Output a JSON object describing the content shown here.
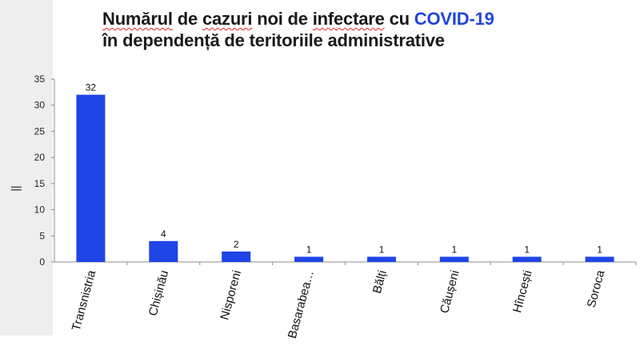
{
  "title": {
    "line1_pre": "Numărul",
    "line1_mid1": " de ",
    "line1_word2": "cazuri",
    "line1_mid2": " noi de ",
    "line1_word3": "infectare",
    "line1_mid3": " cu ",
    "line1_accent": "COVID-19",
    "line2": "în dependență de teritoriile administrative"
  },
  "colors": {
    "bar": "#1f44e8",
    "accent": "#2245dd",
    "axis": "#8c8c8c"
  },
  "chart_data": {
    "type": "bar",
    "categories": [
      "Transnistria",
      "Chișinău",
      "Nisporeni",
      "Basarabea…",
      "Bălți",
      "Căușeni",
      "Hîncești",
      "Soroca"
    ],
    "values": [
      32,
      4,
      2,
      1,
      1,
      1,
      1,
      1
    ],
    "ylim": [
      0,
      35
    ],
    "yticks": [
      0,
      5,
      10,
      15,
      20,
      25,
      30,
      35
    ],
    "ylabel": "||",
    "grid": false,
    "data_labels": true
  }
}
